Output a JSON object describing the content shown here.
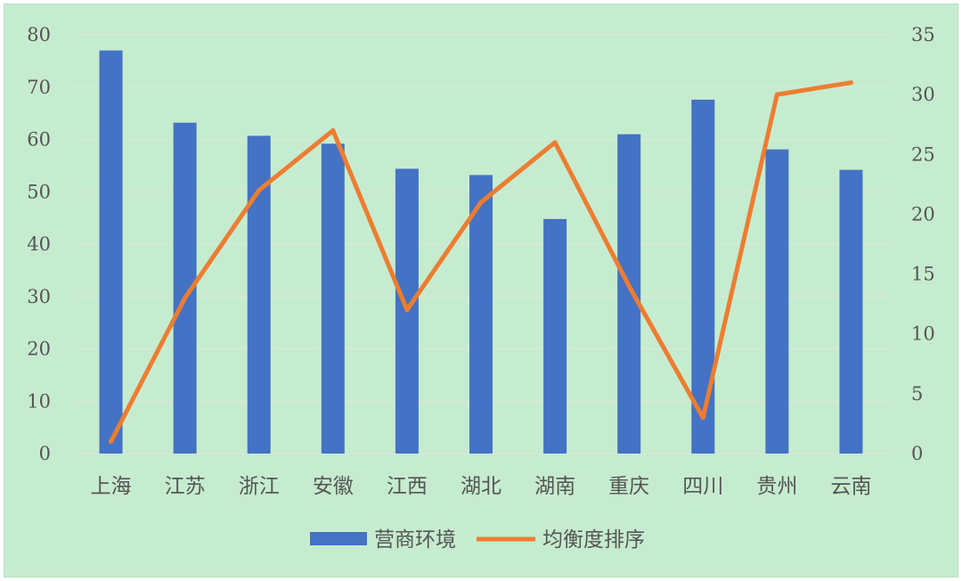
{
  "chart_data": {
    "type": "bar+line",
    "title": "",
    "categories": [
      "上海",
      "江苏",
      "浙江",
      "安徽",
      "江西",
      "湖北",
      "湖南",
      "重庆",
      "四川",
      "贵州",
      "云南"
    ],
    "series": [
      {
        "name": "营商环境",
        "type": "bar",
        "axis": "left",
        "color": "#4472c4",
        "values": [
          77.0,
          63.2,
          60.7,
          59.2,
          54.4,
          53.2,
          44.8,
          61.0,
          67.6,
          58.1,
          54.2
        ]
      },
      {
        "name": "均衡度排序",
        "type": "line",
        "axis": "right",
        "color": "#ed7d31",
        "values": [
          1,
          13,
          22,
          27,
          12,
          21,
          26,
          14,
          3,
          30,
          31
        ]
      }
    ],
    "y_left": {
      "min": 0,
      "max": 80,
      "ticks": [
        "0",
        "10",
        "20",
        "30",
        "40",
        "50",
        "60",
        "70",
        "80"
      ]
    },
    "y_right": {
      "min": 0,
      "max": 35,
      "ticks": [
        "0",
        "5",
        "10",
        "15",
        "20",
        "25",
        "30",
        "35"
      ]
    },
    "grid": true,
    "legend": "bottom",
    "colors": {
      "background": "#c6eccf",
      "grid": "#d9e7dc",
      "text": "#555555"
    }
  }
}
